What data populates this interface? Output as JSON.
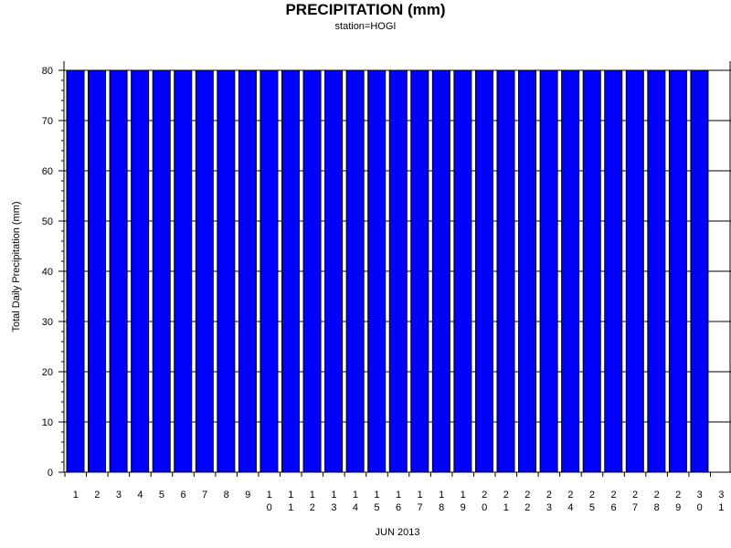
{
  "chart_data": {
    "type": "bar",
    "title": "PRECIPITATION (mm)",
    "subtitle": "station=HOGI",
    "xlabel": "JUN 2013",
    "ylabel": "Total Daily Precipitation (mm)",
    "ylim": [
      0,
      80
    ],
    "yticks": [
      0,
      10,
      20,
      30,
      40,
      50,
      60,
      70,
      80
    ],
    "grid": true,
    "categories": [
      "1",
      "2",
      "3",
      "4",
      "5",
      "6",
      "7",
      "8",
      "9",
      "10",
      "11",
      "12",
      "13",
      "14",
      "15",
      "16",
      "17",
      "18",
      "19",
      "20",
      "21",
      "22",
      "23",
      "24",
      "25",
      "26",
      "27",
      "28",
      "29",
      "30",
      "31"
    ],
    "values": [
      80,
      80,
      80,
      80,
      80,
      80,
      80,
      80,
      80,
      80,
      80,
      80,
      80,
      80,
      80,
      80,
      80,
      80,
      80,
      80,
      80,
      80,
      80,
      80,
      80,
      80,
      80,
      80,
      80,
      80,
      null
    ],
    "bar_color": "#0000ff"
  }
}
